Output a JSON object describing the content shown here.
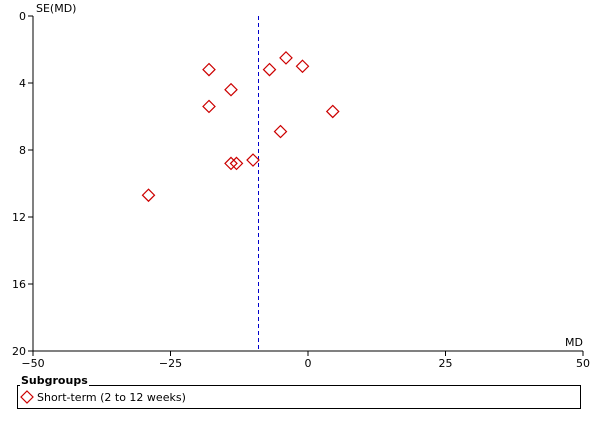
{
  "chart_data": {
    "type": "scatter",
    "subtype": "funnel-plot",
    "xlabel": "MD",
    "ylabel": "SE(MD)",
    "xlim": [
      -50,
      50
    ],
    "ylim": [
      0,
      20
    ],
    "y_inverted": true,
    "x_ticks": [
      "-50",
      "-25",
      "0",
      "25",
      "50"
    ],
    "y_ticks": [
      "0",
      "4",
      "8",
      "12",
      "16",
      "20"
    ],
    "reference_line": {
      "x": -9,
      "style": "dashed",
      "color": "#0000cc"
    },
    "grid": false,
    "legend": {
      "title": "Subgroups",
      "placement": "bottom",
      "entries": [
        {
          "label": "Short-term (2 to 12 weeks)",
          "marker": "diamond",
          "color": "#cc0000"
        }
      ]
    },
    "series": [
      {
        "marker": "diamond",
        "color": "#cc0000",
        "points": [
          {
            "x": -18,
            "y": 3.2
          },
          {
            "x": -4,
            "y": 2.5
          },
          {
            "x": -7,
            "y": 3.2
          },
          {
            "x": -1,
            "y": 3.0
          },
          {
            "x": -14,
            "y": 4.4
          },
          {
            "x": -18,
            "y": 5.4
          },
          {
            "x": 4.5,
            "y": 5.7
          },
          {
            "x": -5,
            "y": 6.9
          },
          {
            "x": -14,
            "y": 8.8
          },
          {
            "x": -13,
            "y": 8.8
          },
          {
            "x": -10,
            "y": 8.6
          },
          {
            "x": -29,
            "y": 10.7
          }
        ]
      }
    ]
  }
}
